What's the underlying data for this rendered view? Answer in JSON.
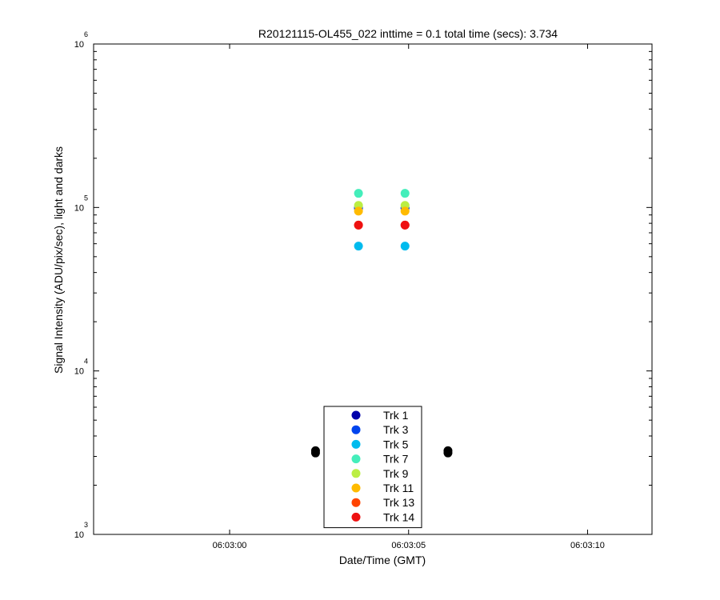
{
  "chart_data": {
    "type": "scatter",
    "title": "R20121115-OL455_022 inttime = 0.1 total time (secs): 3.734",
    "xlabel": "Date/Time (GMT)",
    "ylabel": "Signal Intensity (ADU/pix/sec), light and darks",
    "x_scale": "time",
    "y_scale": "log",
    "xlim": [
      "06:02:56.2",
      "06:03:11.8"
    ],
    "ylim": [
      1000,
      1000000
    ],
    "x_ticks": [
      {
        "value": "06:03:00",
        "label": "06:03:00"
      },
      {
        "value": "06:03:05",
        "label": "06:03:05"
      },
      {
        "value": "06:03:10",
        "label": "06:03:10"
      }
    ],
    "y_ticks": [
      {
        "value": 1000,
        "base": "10",
        "exp": "3"
      },
      {
        "value": 10000,
        "base": "10",
        "exp": "4"
      },
      {
        "value": 100000,
        "base": "10",
        "exp": "5"
      },
      {
        "value": 1000000,
        "base": "10",
        "exp": "6"
      }
    ],
    "grid": false,
    "legend_position": "bottom-center",
    "series": [
      {
        "name": "Trk 1",
        "color": "#0000aa",
        "points": [
          {
            "x": "06:03:03.6",
            "y": 99000
          },
          {
            "x": "06:03:04.9",
            "y": 99000
          }
        ]
      },
      {
        "name": "Trk 3",
        "color": "#0044ee",
        "points": [
          {
            "x": "06:03:03.6",
            "y": 99500
          },
          {
            "x": "06:03:04.9",
            "y": 99500
          }
        ]
      },
      {
        "name": "Trk 5",
        "color": "#00bbee",
        "points": [
          {
            "x": "06:03:03.6",
            "y": 58000
          },
          {
            "x": "06:03:04.9",
            "y": 58000
          }
        ]
      },
      {
        "name": "Trk 7",
        "color": "#44eebb",
        "points": [
          {
            "x": "06:03:03.6",
            "y": 122000
          },
          {
            "x": "06:03:04.9",
            "y": 122000
          }
        ]
      },
      {
        "name": "Trk 9",
        "color": "#bbee44",
        "points": [
          {
            "x": "06:03:03.6",
            "y": 103000
          },
          {
            "x": "06:03:04.9",
            "y": 103000
          }
        ]
      },
      {
        "name": "Trk 11",
        "color": "#ffbb00",
        "points": [
          {
            "x": "06:03:03.6",
            "y": 95000
          },
          {
            "x": "06:03:04.9",
            "y": 95000
          }
        ]
      },
      {
        "name": "Trk 13",
        "color": "#ff4400",
        "points": [
          {
            "x": "06:03:03.6",
            "y": 78000
          },
          {
            "x": "06:03:04.9",
            "y": 78000
          }
        ]
      },
      {
        "name": "Trk 14",
        "color": "#ee1111",
        "points": [
          {
            "x": "06:03:03.6",
            "y": 78000
          },
          {
            "x": "06:03:04.9",
            "y": 78000
          }
        ]
      }
    ],
    "darks": {
      "color": "#000000",
      "points": [
        {
          "x": "06:03:02.4",
          "y": 3250
        },
        {
          "x": "06:03:02.4",
          "y": 3150
        },
        {
          "x": "06:03:06.1",
          "y": 3250
        },
        {
          "x": "06:03:06.1",
          "y": 3150
        }
      ]
    }
  }
}
